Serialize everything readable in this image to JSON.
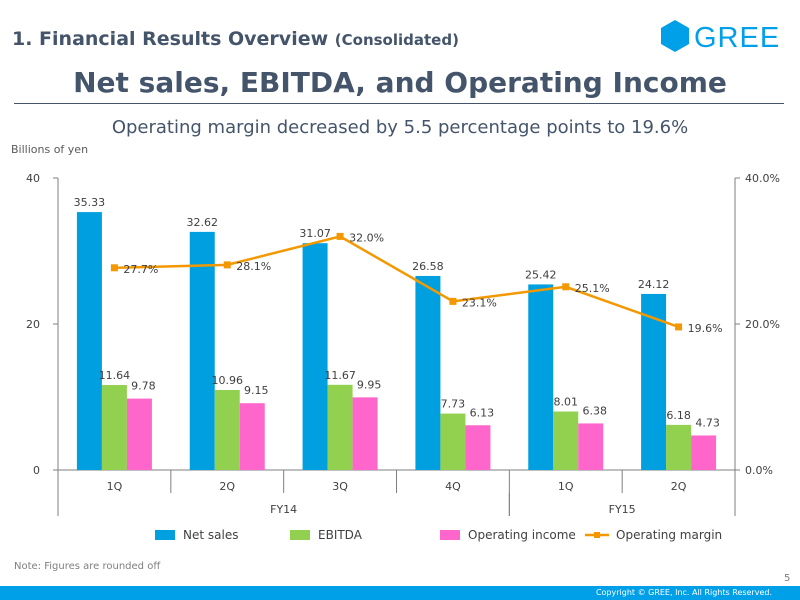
{
  "header": {
    "section_title": "1. Financial Results Overview",
    "section_subtitle": "(Consolidated)",
    "logo_text": "GREE",
    "main_title": "Net sales, EBITDA, and Operating Income",
    "subtitle": "Operating margin decreased by 5.5 percentage points to 19.6%",
    "unit_label": "Billions of yen"
  },
  "colors": {
    "net_sales": "#00a0e0",
    "ebitda": "#92d050",
    "operating_income": "#ff66cc",
    "operating_margin": "#f39800",
    "brand": "#00a0e9",
    "title": "#44546a"
  },
  "chart_data": {
    "type": "bar",
    "categories": [
      "1Q",
      "2Q",
      "3Q",
      "4Q",
      "1Q",
      "2Q"
    ],
    "groups": [
      {
        "label": "FY14",
        "start": 0,
        "end": 3
      },
      {
        "label": "FY15",
        "start": 4,
        "end": 5
      }
    ],
    "series": [
      {
        "name": "Net sales",
        "key": "net_sales",
        "values": [
          35.33,
          32.62,
          31.07,
          26.58,
          25.42,
          24.12
        ],
        "labels": [
          "35.33",
          "32.62",
          "31.07",
          "26.58",
          "25.42",
          "24.12"
        ]
      },
      {
        "name": "EBITDA",
        "key": "ebitda",
        "values": [
          11.64,
          10.96,
          11.67,
          7.73,
          8.01,
          6.18
        ],
        "labels": [
          "11.64",
          "10.96",
          "11.67",
          "7.73",
          "8.01",
          "6.18"
        ]
      },
      {
        "name": "Operating income",
        "key": "operating_income",
        "values": [
          9.78,
          9.15,
          9.95,
          6.13,
          6.38,
          4.73
        ],
        "labels": [
          "9.78",
          "9.15",
          "9.95",
          "6.13",
          "6.38",
          "4.73"
        ]
      }
    ],
    "line_series": {
      "name": "Operating margin",
      "key": "operating_margin",
      "axis": "right",
      "values": [
        27.7,
        28.1,
        32.0,
        23.1,
        25.1,
        19.6
      ],
      "labels": [
        "27.7%",
        "28.1%",
        "32.0%",
        "23.1%",
        "25.1%",
        "19.6%"
      ]
    },
    "y_left": {
      "min": 0,
      "max": 40,
      "ticks": [
        0,
        20,
        40
      ],
      "tick_labels": [
        "0",
        "20",
        "40"
      ]
    },
    "y_right": {
      "min": 0,
      "max": 40,
      "ticks": [
        0,
        20,
        40
      ],
      "tick_labels": [
        "0.0%",
        "20.0%",
        "40.0%"
      ]
    },
    "legend_position": "bottom",
    "grid": false
  },
  "footer": {
    "note": "Note: Figures are rounded off",
    "page_number": "5",
    "copyright": "Copyright © GREE, Inc. All Rights Reserved."
  }
}
